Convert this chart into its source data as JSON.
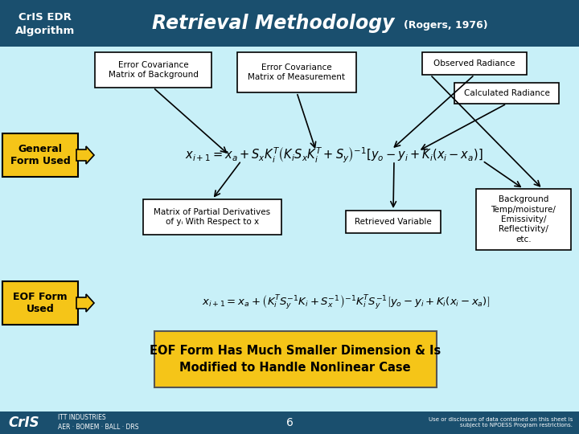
{
  "bg_color": "#c8f0f8",
  "header_left_color": "#1a4f6e",
  "header_right_color": "#1a4f6e",
  "header_left_text": "CrIS EDR\nAlgorithm",
  "header_title": "Retrieval Methodology",
  "header_subtitle": " (Rogers, 1976)",
  "footer_bg": "#1a4f6e",
  "footer_left": "CrIS",
  "footer_left2": "ITT INDUSTRIES\nAER · BOMEM · BALL · DRS",
  "footer_center": "6",
  "footer_right": "Use or disclosure of data contained on this sheet is\nsubject to NPOESS Program restrictions.",
  "box_error_text": "Error Covariance\nMatrix of Background",
  "box_meas_text": "Error Covariance\nMatrix of Measurement",
  "box_obs_text": "Observed Radiance",
  "box_calc_text": "Calculated Radiance",
  "box_partial_text": "Matrix of Partial Derivatives\nof yᵢ With Respect to x",
  "box_retrieved_text": "Retrieved Variable",
  "box_bg_temp_text": "Background\nTemp/moisture/\nEmissivity/\nReflectivity/\netc.",
  "label_general": "General\nForm Used",
  "label_eof": "EOF Form\nUsed",
  "eof_note_text": "EOF Form Has Much Smaller Dimension & Is\nModified to Handle Nonlinear Case",
  "eq1": "$x_{i+1} = x_a + S_x K_i^T\\left(K_i S_x K_i^T + S_y\\right)^{-1}\\left[y_o - y_i + K_i\\left(x_i - x_a\\right)\\right]$",
  "eq2": "$x_{i+1} = x_a + \\left(K_i^T S_y^{-1} K_i + S_x^{-1}\\right)^{-1} K_i^T S_y^{-1}\\left[y_o - y_i + K_i\\left(x_i - x_a\\right)\\right]$",
  "yellow_color": "#f5c518",
  "arrow_color": "#000000"
}
